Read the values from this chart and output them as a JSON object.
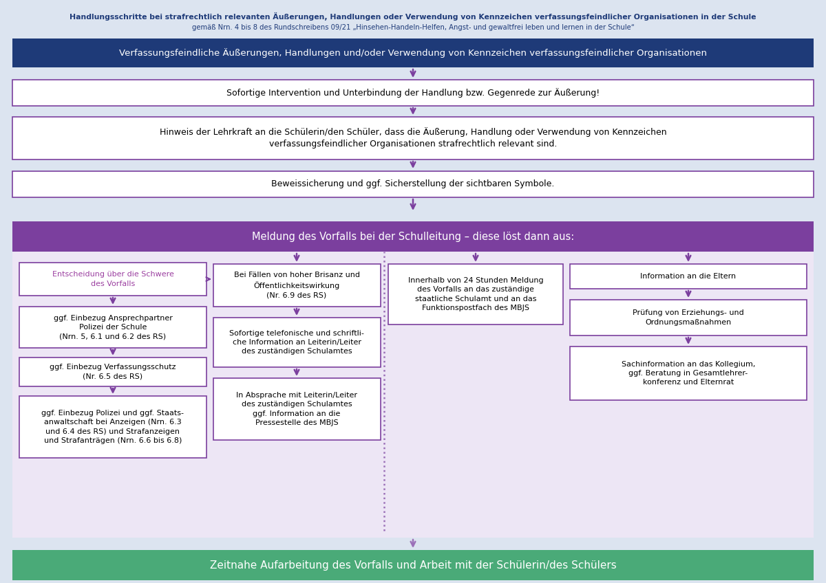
{
  "title_line1": "Handlungsschritte bei strafrechtlich relevanten Äußerungen, Handlungen oder Verwendung von Kennzeichen verfassungsfeindlicher Organisationen in der Schule",
  "title_line2": "gemäß Nrn. 4 bis 8 des Rundschreibens 09/21 „Hinsehen-Handeln-Helfen, Angst- und gewaltfrei leben und lernen in der Schule“",
  "bg_color": "#dce4f0",
  "header_bg": "#1e3a78",
  "header_text_bold1": "Verfassungsfeindliche Äußerungen, Handlungen",
  "header_text_normal": " und/oder ",
  "header_text_bold2": "Verwendung von Kennzeichen verfassungsfeindlicher Organisationen",
  "header_text_color": "#ffffff",
  "box1_text": "Sofortige Intervention und Unterbindung der Handlung bzw. Gegenrede zur Äußerung!",
  "box2_text": "Hinweis der Lehrkraft an die Schülerin/den Schüler, dass die Äußerung, Handlung oder Verwendung von Kennzeichen\nverfassungsfeindlicher Organisationen strafrechtlich relevant sind.",
  "box3_text": "Beweissicherung und ggf. Sicherstellung der sichtbaren Symbole.",
  "purple_bar_bg": "#7b3f9e",
  "purple_bar_text_bold": "Meldung des Vorfalls bei der Schulleitung",
  "purple_bar_text_normal": " – diese löst dann aus:",
  "purple_bar_text_color": "#ffffff",
  "col1_box1_text": "Entscheidung über die Schwere\ndes Vorfalls",
  "col1_box2_text": "ggf. Einbezug Ansprechpartner\nPolizei der Schule\n(Nrn. 5, 6.1 und 6.2 des RS)",
  "col1_box3_text": "ggf. Einbezug Verfassungsschutz\n(Nr. 6.5 des RS)",
  "col1_box4_text": "ggf. Einbezug Polizei und ggf. Staats-\nanwaltschaft bei Anzeigen (Nrn. 6.3\nund 6.4 des RS) und Strafanzeigen\nund Strafanträgen (Nrn. 6.6 bis 6.8)",
  "col2_box1_text": "Bei Fällen von hoher Brisanz und\nÖffentlichkeitswirkung\n(Nr. 6.9 des RS)",
  "col2_box2_text": "Sofortige telefonische und schriftli-\nche Information an Leiterin/Leiter\ndes zuständigen Schulamtes",
  "col2_box3_text": "In Absprache mit Leiterin/Leiter\ndes zuständigen Schulamtes\nggf. Information an die\nPressestelle des MBJS",
  "col3_text": "Innerhalb von 24 Stunden Meldung\ndes Vorfalls an das zuständige\nstaatliche Schulamt und an das\nFunktionspostfach des MBJS",
  "col4_box1_text": "Information an die Eltern",
  "col4_box2_text": "Prüfung von Erziehungs- und\nOrdnungsmaßnahmen",
  "col4_box3_text": "Sachinformation an das Kollegium,\nggf. Beratung in Gesamtlehrer-\nkonferenz und Elternrat",
  "footer_text_normal": "Zeitnahe Aufarbeitung des Vorfalls und ",
  "footer_text_bold": "Arbeit mit der Schülerin/des Schülers",
  "footer_bg": "#4aaa78",
  "footer_text_color": "#ffffff",
  "box_bg": "#ffffff",
  "box_border_color": "#7b3f9e",
  "col1_text_color": "#9b3fa0",
  "arrow_color": "#7b3f9e",
  "dashed_color": "#9b70b8",
  "title_color": "#1e3a78",
  "columns_bg": "#ede6f5",
  "col_border_color": "#c8b0d8"
}
